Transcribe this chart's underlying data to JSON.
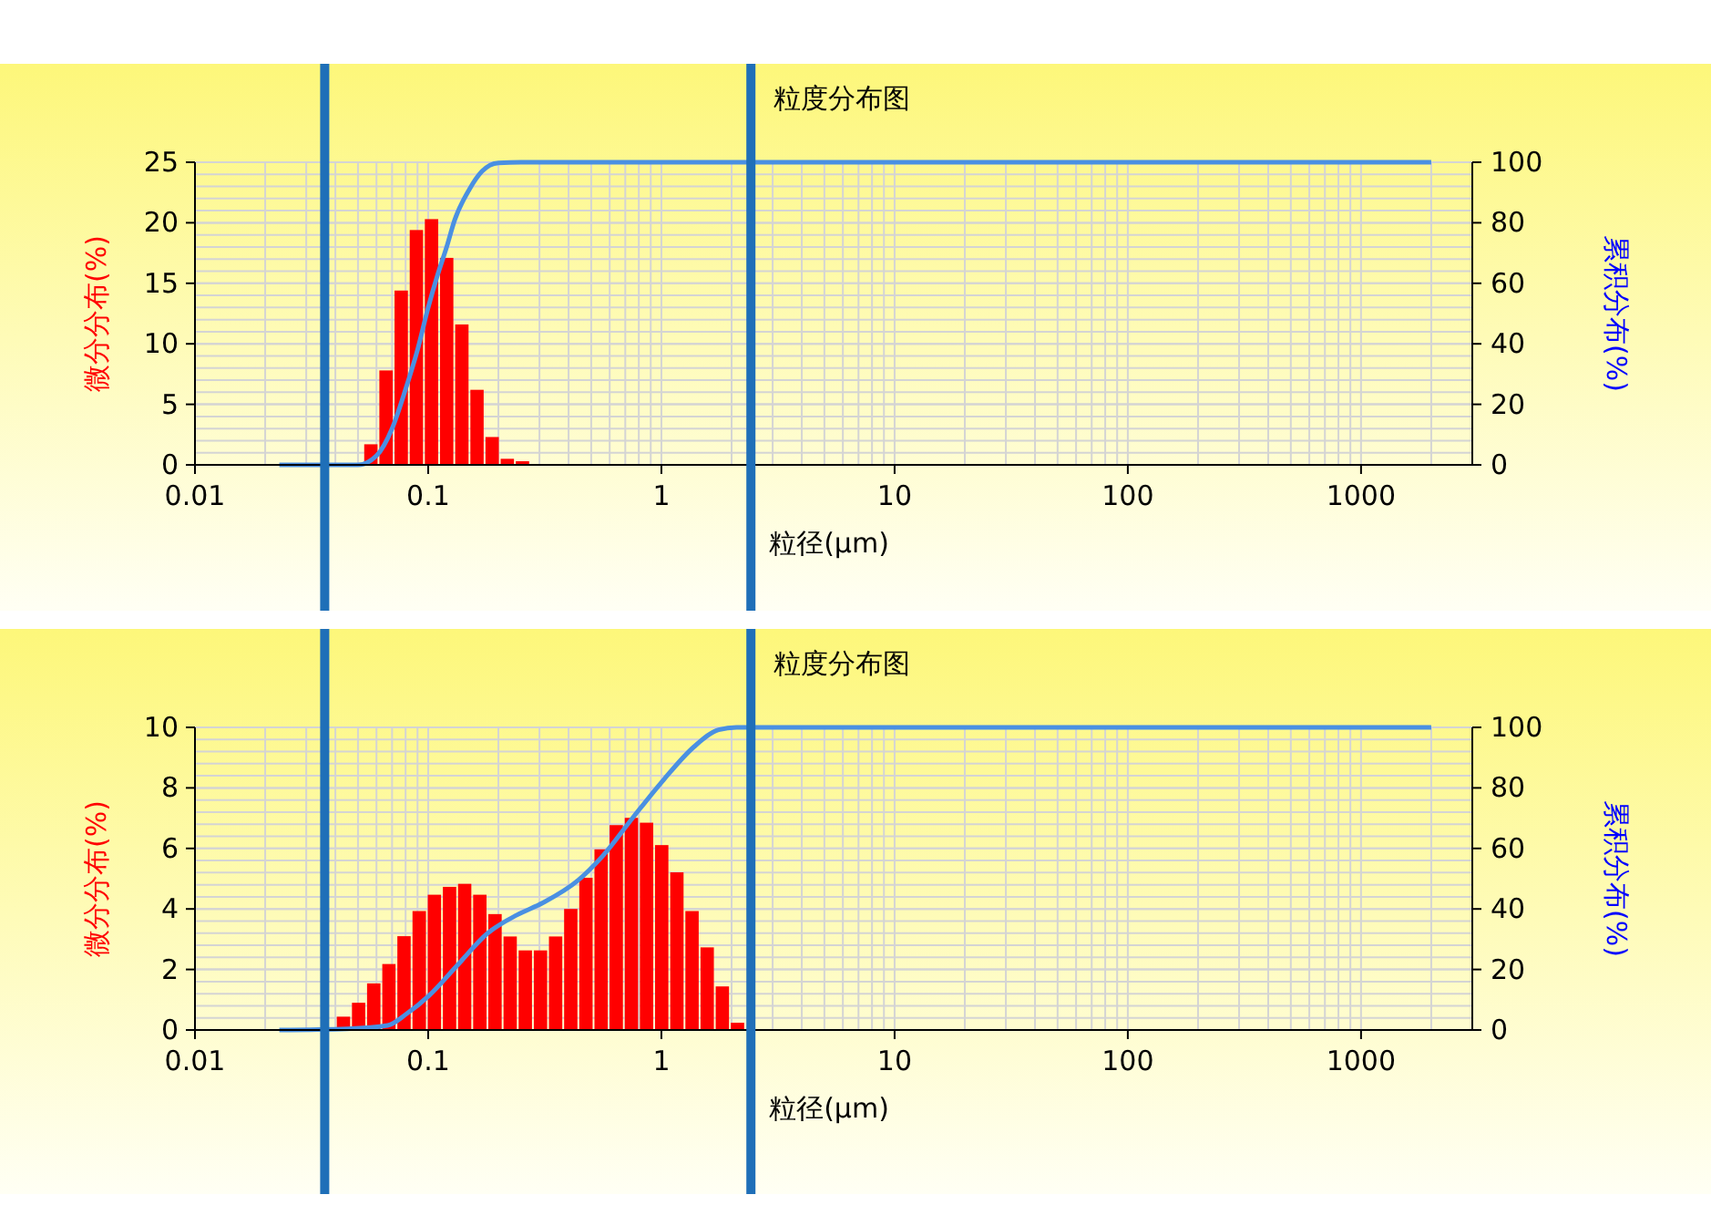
{
  "chart_data": [
    {
      "type": "histogram",
      "title": "粒度分布图",
      "xlabel": "粒径(μm)",
      "ylabel": "微分分布(%)",
      "y2label": "累积分布(%)",
      "log": "x",
      "grid": true,
      "bins": [
        0.0527,
        0.0612,
        0.0711,
        0.0826,
        0.0959,
        0.1114,
        0.1294,
        0.1503,
        0.1745,
        0.2027,
        0.2354,
        0.2734
      ],
      "series": [
        {
          "color": "#ff0000",
          "values": [
            1.7,
            7.8,
            14.4,
            19.4,
            20.3,
            17.1,
            11.6,
            6.2,
            2.3,
            0.5,
            0.3
          ]
        },
        {
          "type": "line",
          "axis": "y2",
          "color": "#4a90e2",
          "x": [
            0.023,
            0.05,
            0.06,
            0.07,
            0.08,
            0.09,
            0.1,
            0.11,
            0.12,
            0.13,
            0.15,
            0.17,
            0.2,
            0.25,
            2000
          ],
          "values": [
            0,
            0,
            3,
            12,
            25,
            38,
            52,
            63,
            72,
            81,
            91,
            97,
            99.8,
            100,
            100
          ]
        }
      ],
      "xlim": [
        0.01,
        3000
      ],
      "xticks": [
        0.01,
        0.1,
        1,
        10,
        100,
        1000
      ],
      "ylim": [
        0,
        25
      ],
      "yticks": [
        0,
        5,
        10,
        15,
        20,
        25
      ],
      "y2lim": [
        0,
        100
      ],
      "y2ticks": [
        0,
        20,
        40,
        60,
        80,
        100
      ],
      "ref_lines": [
        {
          "axis": "x",
          "value": 0.036,
          "color": "#1f6fb8"
        },
        {
          "axis": "x",
          "value": 2.42,
          "color": "#1f6fb8"
        }
      ]
    },
    {
      "type": "histogram",
      "title": "粒度分布图",
      "xlabel": "粒径(μm)",
      "ylabel": "微分分布(%)",
      "y2label": "累积分布(%)",
      "log": "x",
      "grid": true,
      "bins": [
        0.0402,
        0.0467,
        0.0542,
        0.063,
        0.0731,
        0.0849,
        0.0987,
        0.1146,
        0.1331,
        0.1545,
        0.1795,
        0.2085,
        0.2421,
        0.2812,
        0.3266,
        0.3793,
        0.4405,
        0.5117,
        0.5943,
        0.6902,
        0.8016,
        0.931,
        1.0813,
        1.2558,
        1.4585,
        1.6939,
        1.9673,
        2.2849
      ],
      "series": [
        {
          "color": "#ff0000",
          "values": [
            0.44,
            0.9,
            1.54,
            2.18,
            3.1,
            3.93,
            4.47,
            4.73,
            4.83,
            4.47,
            3.83,
            3.09,
            2.63,
            2.63,
            3.09,
            4.0,
            5.03,
            5.97,
            6.77,
            7.01,
            6.85,
            6.11,
            5.21,
            3.93,
            2.73,
            1.44,
            0.24
          ]
        },
        {
          "type": "line",
          "axis": "y2",
          "color": "#4a90e2",
          "x": [
            0.023,
            0.045,
            0.067,
            0.081,
            0.101,
            0.132,
            0.18,
            0.24,
            0.31,
            0.44,
            0.56,
            0.76,
            1.02,
            1.38,
            1.76,
            2.1,
            2000
          ],
          "values": [
            0,
            0.4,
            1.5,
            5.4,
            11.4,
            21,
            32,
            38,
            42,
            49.5,
            57.5,
            70.5,
            82.6,
            93.6,
            99.2,
            100,
            100
          ]
        }
      ],
      "xlim": [
        0.01,
        3000
      ],
      "xticks": [
        0.01,
        0.1,
        1,
        10,
        100,
        1000
      ],
      "ylim": [
        0,
        10
      ],
      "yticks": [
        0,
        2,
        4,
        6,
        8,
        10
      ],
      "y2lim": [
        0,
        100
      ],
      "y2ticks": [
        0,
        20,
        40,
        60,
        80,
        100
      ],
      "ref_lines": [
        {
          "axis": "x",
          "value": 0.036,
          "color": "#1f6fb8"
        },
        {
          "axis": "x",
          "value": 2.42,
          "color": "#1f6fb8"
        }
      ]
    }
  ]
}
